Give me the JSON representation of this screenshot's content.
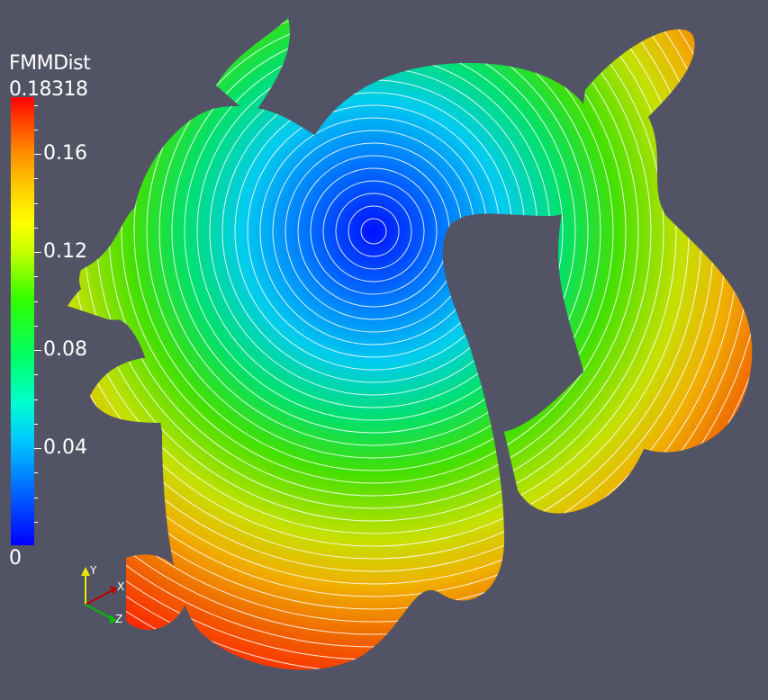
{
  "legend": {
    "title": "FMMDist",
    "max_label": "0.18318",
    "min_label": "0",
    "ticks": [
      "0.16",
      "0.12",
      "0.08",
      "0.04"
    ]
  },
  "axes_widget": {
    "x": "X",
    "y": "Y",
    "z": "Z"
  },
  "colors": {
    "background": "#525466",
    "colormap_low": "#0000ff",
    "colormap_high": "#ff0000"
  }
}
